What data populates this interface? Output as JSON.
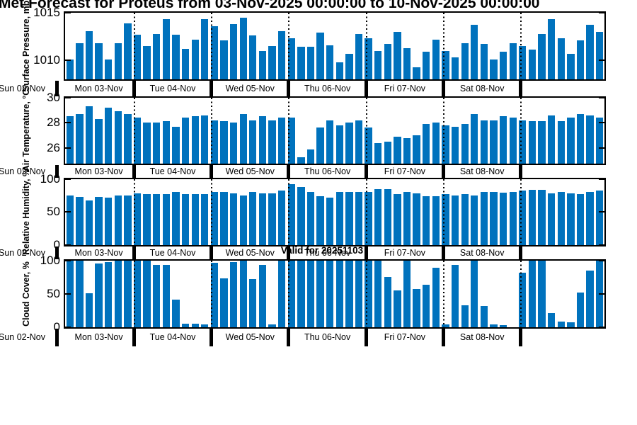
{
  "title": "Met Forecast for Proteus from 03-Nov-2025 00:00:00 to 10-Nov-2025 00:00:00",
  "annotation": "Valid for 20251103",
  "bar_color": "#0072BD",
  "x_day_labels": [
    "Sun 02-Nov",
    "Mon 03-Nov",
    "Tue 04-Nov",
    "Wed 05-Nov",
    "Thu 06-Nov",
    "Fri 07-Nov",
    "Sat 08-Nov"
  ],
  "chart_data": [
    {
      "type": "bar",
      "title": "",
      "ylabel": "Surface Pressure, mb",
      "xlabel": "",
      "ylim": [
        1008,
        1015
      ],
      "yticks": [
        1015,
        1010
      ],
      "grid": false,
      "legend": "none",
      "x_interval_hours": 3,
      "values": [
        1010.1,
        1011.8,
        1013.1,
        1011.8,
        1010.1,
        1011.8,
        1013.9,
        1012.7,
        1011.5,
        1012.8,
        1014.3,
        1012.7,
        1011.2,
        1012.2,
        1014.3,
        1013.6,
        1012.1,
        1013.8,
        1014.5,
        1012.6,
        1011.0,
        1011.5,
        1013.1,
        1012.3,
        1011.4,
        1011.4,
        1012.9,
        1011.6,
        1009.8,
        1010.7,
        1012.8,
        1012.3,
        1011.0,
        1011.7,
        1013.0,
        1011.3,
        1009.3,
        1010.9,
        1012.2,
        1011.0,
        1010.3,
        1011.8,
        1013.7,
        1011.7,
        1010.1,
        1010.9,
        1011.8,
        1011.5,
        1011.1,
        1012.8,
        1014.3,
        1012.3,
        1010.7,
        1012.1,
        1013.7,
        1013.0
      ]
    },
    {
      "type": "bar",
      "title": "",
      "ylabel": "Air Temperature, °C",
      "xlabel": "",
      "ylim": [
        24.8,
        30
      ],
      "yticks": [
        30,
        28,
        26
      ],
      "grid": false,
      "legend": "none",
      "x_interval_hours": 3,
      "values": [
        28.5,
        28.7,
        29.3,
        28.3,
        29.2,
        28.9,
        28.7,
        28.4,
        28.0,
        28.0,
        28.1,
        27.7,
        28.4,
        28.5,
        28.6,
        28.2,
        28.1,
        28.0,
        28.7,
        28.2,
        28.5,
        28.2,
        28.4,
        28.4,
        25.3,
        25.9,
        27.6,
        28.2,
        27.8,
        28.0,
        28.2,
        27.6,
        26.4,
        26.5,
        26.9,
        26.8,
        27.0,
        27.9,
        28.0,
        27.8,
        27.7,
        27.9,
        28.7,
        28.2,
        28.2,
        28.5,
        28.4,
        28.2,
        28.1,
        28.1,
        28.6,
        28.1,
        28.4,
        28.7,
        28.6,
        28.4
      ]
    },
    {
      "type": "bar",
      "title": "",
      "ylabel": "Relative Humidity, %",
      "xlabel": "",
      "ylim": [
        0,
        100
      ],
      "yticks": [
        100,
        50,
        0
      ],
      "grid": false,
      "legend": "none",
      "x_interval_hours": 3,
      "values": [
        75,
        73,
        67,
        73,
        71,
        75,
        75,
        78,
        77,
        77,
        77,
        80,
        77,
        77,
        77,
        80,
        80,
        78,
        75,
        80,
        78,
        78,
        82,
        92,
        88,
        80,
        74,
        72,
        80,
        80,
        80,
        80,
        84,
        84,
        77,
        80,
        78,
        74,
        74,
        77,
        75,
        77,
        75,
        80,
        80,
        79,
        80,
        82,
        83,
        83,
        78,
        80,
        78,
        77,
        80,
        82
      ]
    },
    {
      "type": "bar",
      "title": "",
      "ylabel": "Cloud Cover, %",
      "xlabel": "",
      "ylim": [
        0,
        100
      ],
      "yticks": [
        100,
        50,
        0
      ],
      "grid": false,
      "legend": "none",
      "x_interval_hours": 3,
      "values": [
        100,
        100,
        51,
        95,
        97,
        100,
        100,
        100,
        99,
        93,
        93,
        41,
        5,
        5,
        4,
        96,
        73,
        97,
        100,
        72,
        93,
        4,
        100,
        100,
        100,
        100,
        100,
        100,
        100,
        100,
        100,
        100,
        100,
        75,
        55,
        100,
        57,
        63,
        89,
        4,
        93,
        32,
        99,
        31,
        4,
        3,
        0,
        81,
        100,
        100,
        21,
        8,
        7,
        52,
        85,
        100
      ]
    }
  ]
}
